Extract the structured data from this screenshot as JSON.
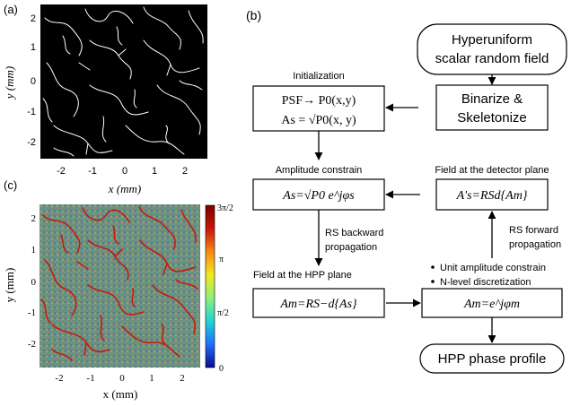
{
  "panels": {
    "a": {
      "label": "(a)",
      "xlabel": "x (mm)",
      "ylabel": "y (mm)",
      "ticks": [
        "-2",
        "-1",
        "0",
        "1",
        "2"
      ]
    },
    "c": {
      "label": "(c)",
      "xlabel": "x (mm)",
      "ylabel": "y (mm)",
      "ticks": [
        "-2",
        "-1",
        "0",
        "1",
        "2"
      ],
      "colorbar": {
        "ticks": [
          "3π/2",
          "π",
          "π/2",
          "0"
        ],
        "colors": [
          "#0a0a8c",
          "#1f6fff",
          "#21d4d4",
          "#8cf07a",
          "#f4e81c",
          "#f58a14",
          "#c8140a",
          "#7a0000"
        ]
      }
    },
    "b": {
      "label": "(b)"
    }
  },
  "flowchart": {
    "hyperuniform": [
      "Hyperuniform",
      "scalar random field"
    ],
    "binarize": [
      "Binarize &",
      "Skeletonize"
    ],
    "initialization": "Initialization",
    "init_line1": "PSF→ P0(x,y)",
    "init_line2": "As = √P0(x, y)",
    "amplitude_constrain": "Amplitude constrain",
    "amp_formula": "As=√P0 e^jφs",
    "rs_backward": [
      "RS backward",
      "propagation"
    ],
    "field_hpp": "Field at the HPP plane",
    "hpp_formula": "Am=RS−d{As}",
    "field_detector": "Field at the detector plane",
    "det_formula": "A's=RSd{Am}",
    "rs_forward": [
      "RS forward",
      "propagation"
    ],
    "bullets": [
      "Unit amplitude constrain",
      "N-level discretization"
    ],
    "disc_formula": "Am=e^jφm",
    "hpp_phase_profile": "HPP phase profile"
  }
}
